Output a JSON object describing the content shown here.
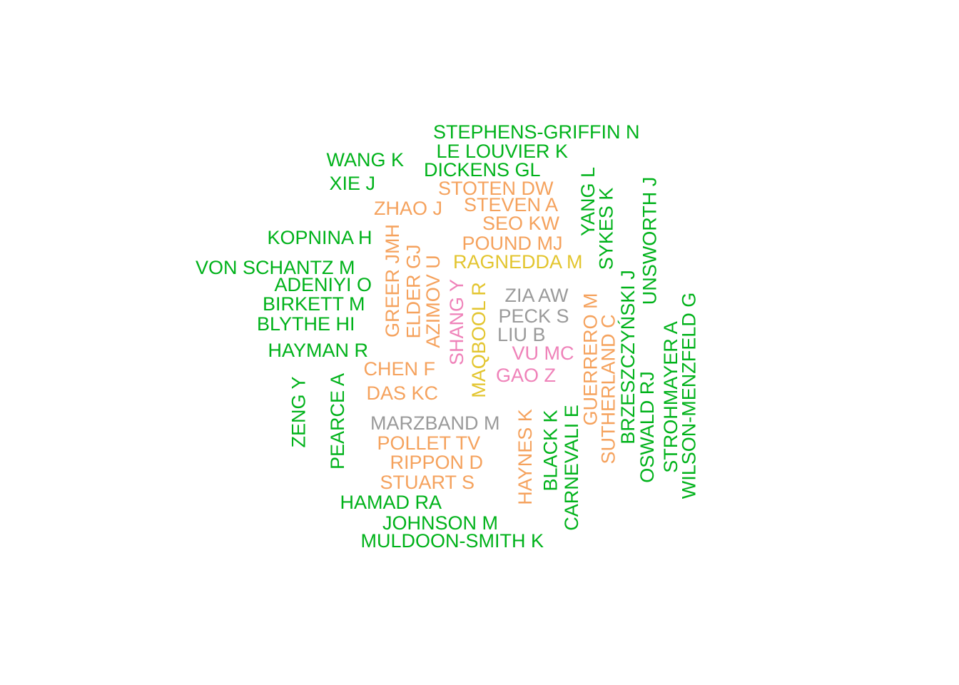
{
  "colors": {
    "green": "#00b21a",
    "orange": "#f5a25d",
    "yellow": "#e3c52e",
    "gray": "#9a9a9a",
    "pink": "#ef82b9"
  },
  "words": [
    {
      "text": "STEPHENS-GRIFFIN N",
      "color": "green"
    },
    {
      "text": "LE LOUVIER K",
      "color": "green"
    },
    {
      "text": "WANG K",
      "color": "green"
    },
    {
      "text": "DICKENS GL",
      "color": "green"
    },
    {
      "text": "XIE J",
      "color": "green"
    },
    {
      "text": "STOTEN DW",
      "color": "orange"
    },
    {
      "text": "ZHAO J",
      "color": "orange"
    },
    {
      "text": "STEVEN A",
      "color": "orange"
    },
    {
      "text": "SEO KW",
      "color": "orange"
    },
    {
      "text": "KOPNINA H",
      "color": "green"
    },
    {
      "text": "POUND MJ",
      "color": "orange"
    },
    {
      "text": "RAGNEDDA M",
      "color": "yellow"
    },
    {
      "text": "VON SCHANTZ M",
      "color": "green"
    },
    {
      "text": "ADENIYI O",
      "color": "green"
    },
    {
      "text": "BIRKETT M",
      "color": "green"
    },
    {
      "text": "BLYTHE HI",
      "color": "green"
    },
    {
      "text": "HAYMAN R",
      "color": "green"
    },
    {
      "text": "ZIA AW",
      "color": "gray"
    },
    {
      "text": "PECK S",
      "color": "gray"
    },
    {
      "text": "LIU B",
      "color": "gray"
    },
    {
      "text": "VU MC",
      "color": "pink"
    },
    {
      "text": "GAO Z",
      "color": "pink"
    },
    {
      "text": "CHEN F",
      "color": "orange"
    },
    {
      "text": "DAS KC",
      "color": "orange"
    },
    {
      "text": "MARZBAND M",
      "color": "gray"
    },
    {
      "text": "POLLET TV",
      "color": "orange"
    },
    {
      "text": "RIPPON D",
      "color": "orange"
    },
    {
      "text": "STUART S",
      "color": "orange"
    },
    {
      "text": "HAMAD RA",
      "color": "green"
    },
    {
      "text": "JOHNSON M",
      "color": "green"
    },
    {
      "text": "MULDOON-SMITH K",
      "color": "green"
    },
    {
      "text": "GREER JMH",
      "color": "orange"
    },
    {
      "text": "ELDER GJ",
      "color": "orange"
    },
    {
      "text": "AZIMOV U",
      "color": "orange"
    },
    {
      "text": "SHANG Y",
      "color": "pink"
    },
    {
      "text": "MAQBOOL R",
      "color": "yellow"
    },
    {
      "text": "YANG L",
      "color": "green"
    },
    {
      "text": "SYKES K",
      "color": "green"
    },
    {
      "text": "UNSWORTH J",
      "color": "green"
    },
    {
      "text": "BRZESZCZYŃSKI J",
      "color": "green"
    },
    {
      "text": "GUERRERO M",
      "color": "orange"
    },
    {
      "text": "SUTHERLAND C",
      "color": "orange"
    },
    {
      "text": "OSWALD RJ",
      "color": "green"
    },
    {
      "text": "STROHMAYER A",
      "color": "green"
    },
    {
      "text": "WILSON-MENZFELD G",
      "color": "green"
    },
    {
      "text": "ZENG Y",
      "color": "green"
    },
    {
      "text": "PEARCE A",
      "color": "green"
    },
    {
      "text": "HAYNES K",
      "color": "orange"
    },
    {
      "text": "BLACK K",
      "color": "green"
    },
    {
      "text": "CARNEVALI E",
      "color": "green"
    }
  ]
}
